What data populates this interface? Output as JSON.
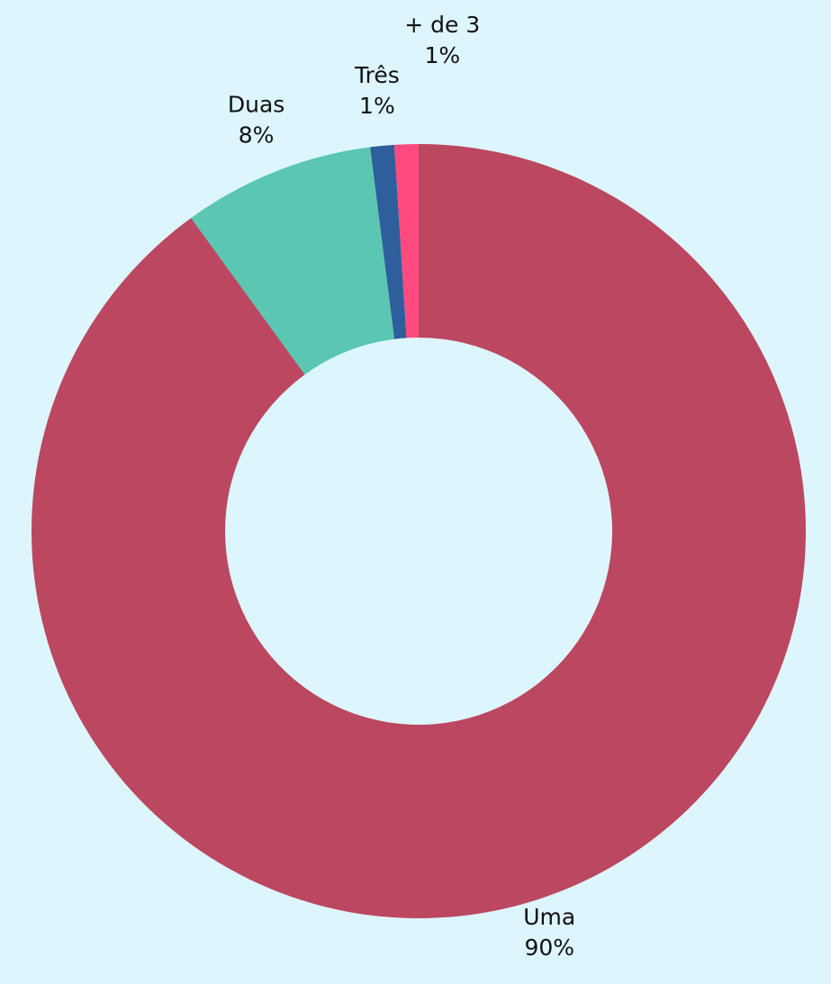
{
  "chart_data": {
    "type": "pie",
    "categories": [
      "Uma",
      "Duas",
      "Três",
      "+ de 3"
    ],
    "values": [
      90,
      8,
      1,
      1
    ],
    "value_labels": [
      "90%",
      "8%",
      "1%",
      "1%"
    ],
    "colors": [
      "#bb4760",
      "#5bc6b2",
      "#2e5f9c",
      "#ff4a80"
    ],
    "donut": true
  }
}
